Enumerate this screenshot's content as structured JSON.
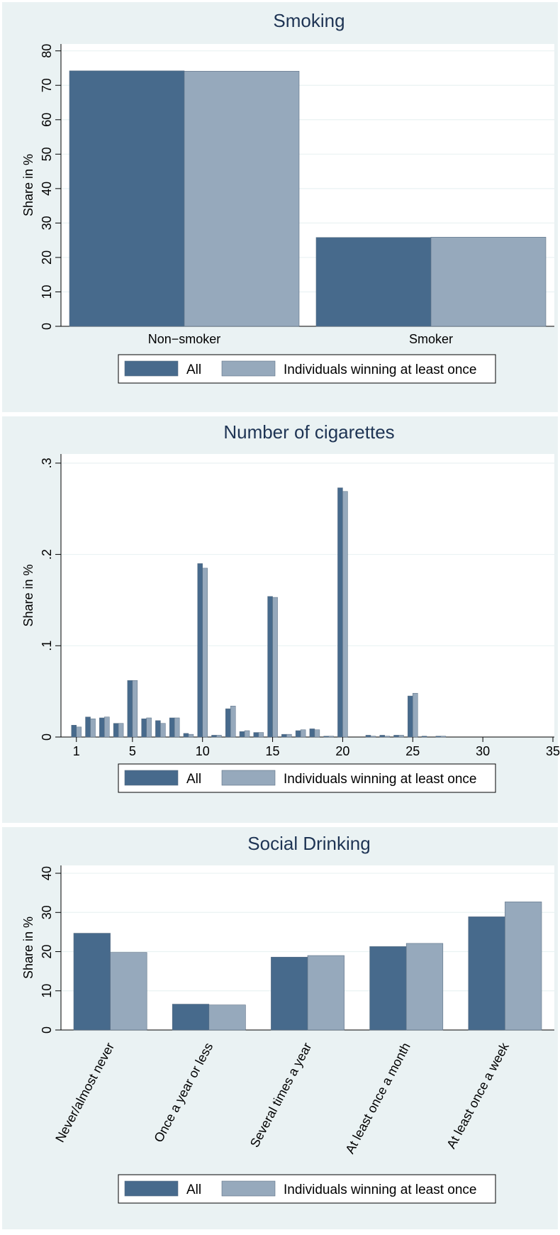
{
  "colors": {
    "panel_background": "#eaf2f3",
    "plot_background": "#ffffff",
    "grid": "#eaf2f3",
    "axis": "#000000",
    "title_color": "#1e3454",
    "series_all": "#476a8c",
    "series_winning": "#96a9bc"
  },
  "chart_data": [
    {
      "type": "bar",
      "title": "Smoking",
      "ylabel": "Share in %",
      "xlabel": "",
      "ylim": [
        0,
        82
      ],
      "yticks": [
        "0",
        "10",
        "20",
        "30",
        "40",
        "50",
        "60",
        "70",
        "80"
      ],
      "grid": true,
      "categories": [
        "Non−smoker",
        "Smoker"
      ],
      "series": [
        {
          "name": "All",
          "values": [
            74.2,
            25.8
          ]
        },
        {
          "name": "Individuals winning at least once",
          "values": [
            74.1,
            25.9
          ]
        }
      ],
      "legend": {
        "placement": "bottom",
        "labels": [
          "All",
          "Individuals winning at least once"
        ]
      }
    },
    {
      "type": "bar",
      "title": "Number of cigarettes",
      "ylabel": "Share in %",
      "xlabel": "",
      "xlim": [
        0,
        35
      ],
      "ylim": [
        0,
        0.31
      ],
      "xticks": [
        "1",
        "5",
        "10",
        "15",
        "20",
        "25",
        "30",
        "35"
      ],
      "yticks": [
        "0",
        ".1",
        ".2",
        ".3"
      ],
      "grid": true,
      "x": [
        1,
        2,
        3,
        4,
        5,
        6,
        7,
        8,
        9,
        10,
        11,
        12,
        13,
        14,
        15,
        16,
        17,
        18,
        19,
        20,
        22,
        23,
        24,
        25,
        26,
        27
      ],
      "series": [
        {
          "name": "All",
          "values": [
            0.013,
            0.022,
            0.021,
            0.015,
            0.062,
            0.02,
            0.018,
            0.021,
            0.004,
            0.19,
            0.002,
            0.031,
            0.006,
            0.005,
            0.154,
            0.003,
            0.007,
            0.009,
            0.001,
            0.273,
            0.002,
            0.002,
            0.002,
            0.045,
            0.001,
            0.001
          ]
        },
        {
          "name": "Individuals winning at least once",
          "values": [
            0.011,
            0.02,
            0.022,
            0.015,
            0.062,
            0.021,
            0.015,
            0.021,
            0.003,
            0.185,
            0.002,
            0.034,
            0.007,
            0.005,
            0.153,
            0.003,
            0.008,
            0.008,
            0.001,
            0.269,
            0.001,
            0.001,
            0.002,
            0.048,
            0.0,
            0.001
          ]
        }
      ],
      "legend": {
        "placement": "bottom",
        "labels": [
          "All",
          "Individuals winning at least once"
        ]
      }
    },
    {
      "type": "bar",
      "title": "Social Drinking",
      "ylabel": "Share in %",
      "xlabel": "",
      "ylim": [
        0,
        42
      ],
      "yticks": [
        "0",
        "10",
        "20",
        "30",
        "40"
      ],
      "grid": true,
      "categories": [
        "Never/almost never",
        "Once a year or less",
        "Several times a year",
        "At least once a month",
        "At least once a week"
      ],
      "series": [
        {
          "name": "All",
          "values": [
            24.7,
            6.6,
            18.6,
            21.3,
            28.9
          ]
        },
        {
          "name": "Individuals winning at least once",
          "values": [
            19.8,
            6.4,
            19.0,
            22.1,
            32.7
          ]
        }
      ],
      "legend": {
        "placement": "bottom",
        "labels": [
          "All",
          "Individuals winning at least once"
        ]
      }
    }
  ]
}
